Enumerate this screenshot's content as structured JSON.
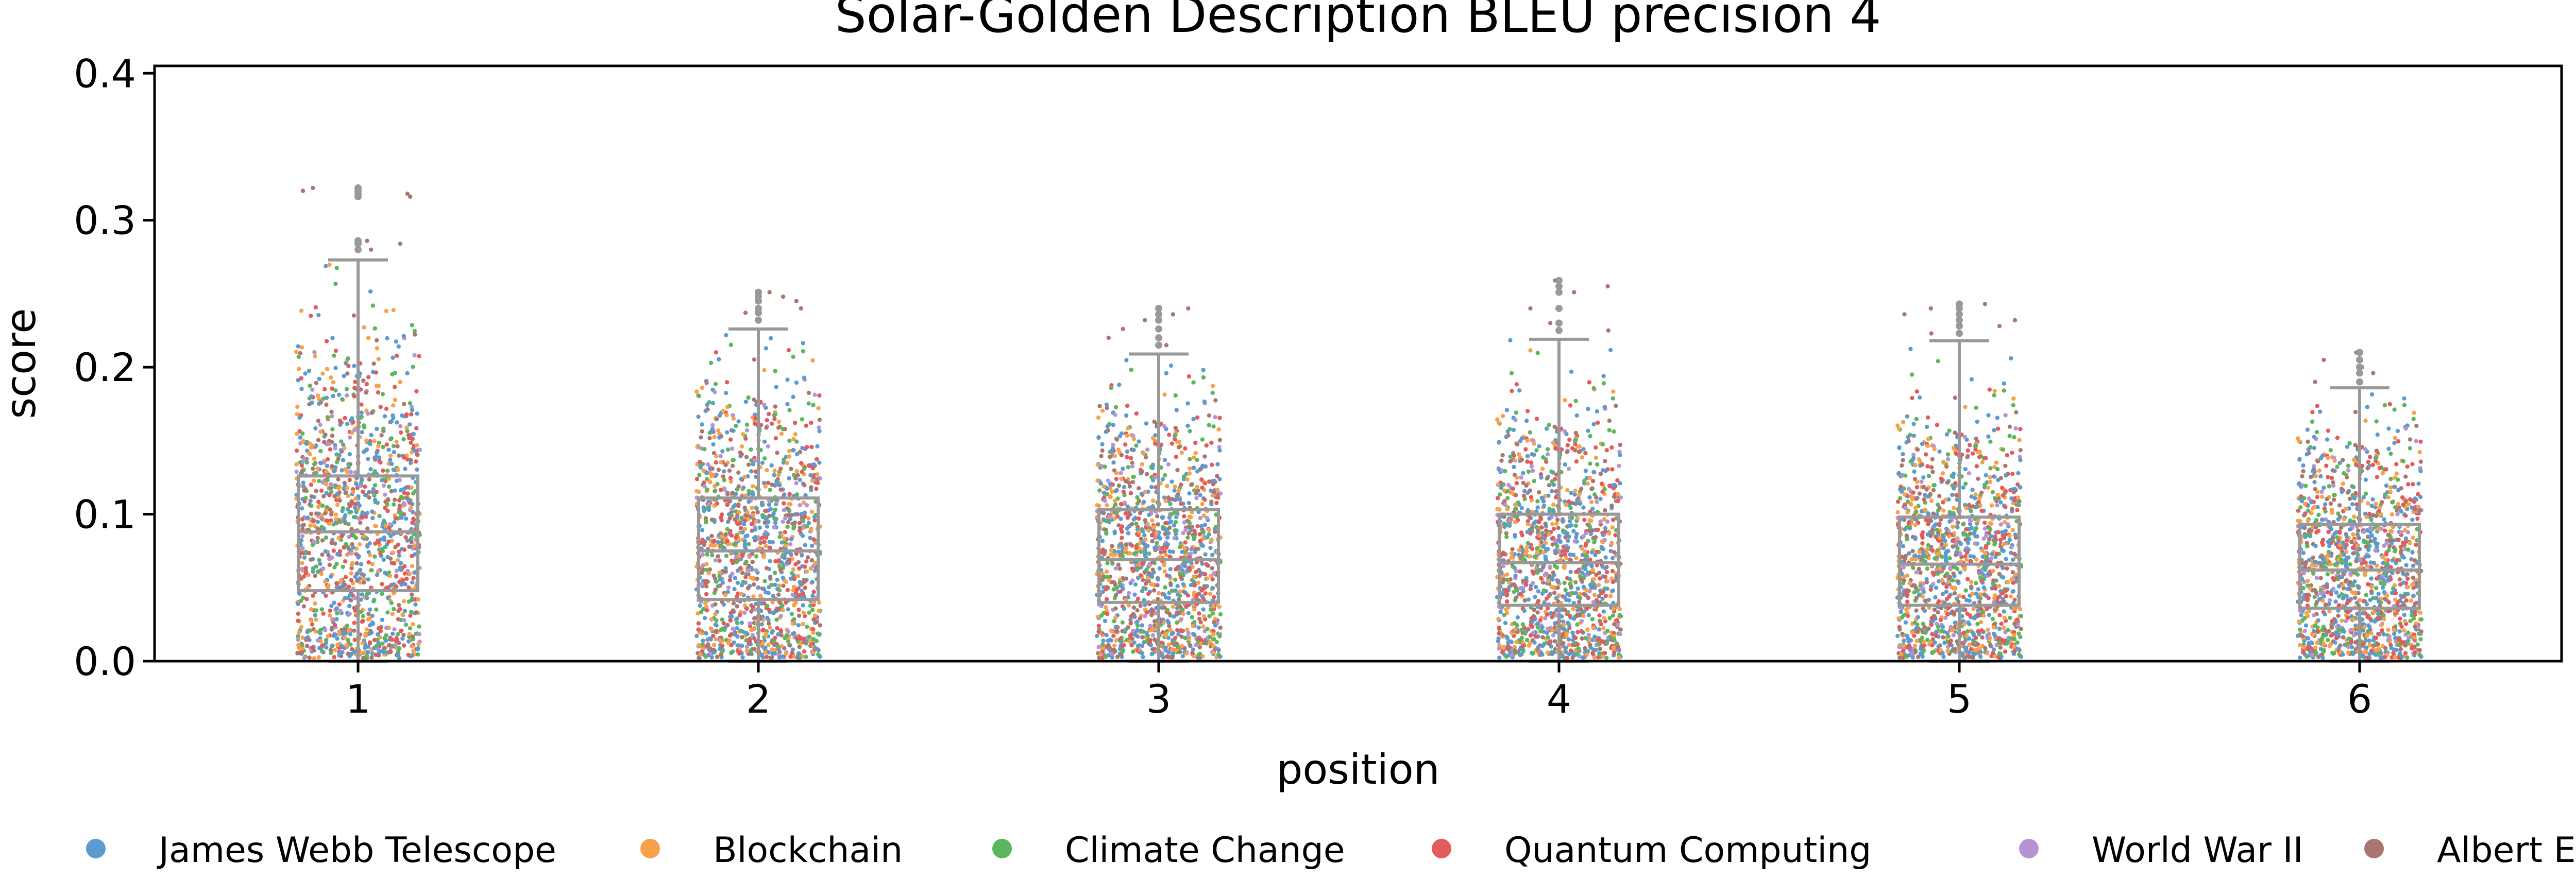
{
  "chart_data": {
    "type": "box",
    "title": "Solar-Golden Description BLEU precision 4",
    "xlabel": "position",
    "ylabel": "score",
    "categories": [
      "1",
      "2",
      "3",
      "4",
      "5",
      "6"
    ],
    "ylim": [
      0,
      0.405
    ],
    "y_ticks": [
      "0.0",
      "0.1",
      "0.2",
      "0.3",
      "0.4"
    ],
    "grid": false,
    "legend_position": "bottom",
    "series": [
      {
        "name": "James Webb Telescope",
        "color": "#5b9bd0"
      },
      {
        "name": "Blockchain",
        "color": "#f7a14c"
      },
      {
        "name": "Climate Change",
        "color": "#5cb65c"
      },
      {
        "name": "Quantum Computing",
        "color": "#e35b5b"
      },
      {
        "name": "World War II",
        "color": "#b594d4"
      },
      {
        "name": "Albert Einstein",
        "color": "#a9776f"
      }
    ],
    "boxes": [
      {
        "position": "1",
        "whisker_low": 0.0,
        "q1": 0.048,
        "median": 0.088,
        "q3": 0.126,
        "whisker_high": 0.273,
        "outliers": [
          0.28,
          0.284,
          0.286,
          0.316,
          0.318,
          0.32,
          0.322
        ]
      },
      {
        "position": "2",
        "whisker_low": 0.0,
        "q1": 0.042,
        "median": 0.075,
        "q3": 0.111,
        "whisker_high": 0.226,
        "outliers": [
          0.232,
          0.237,
          0.24,
          0.245,
          0.248,
          0.251
        ]
      },
      {
        "position": "3",
        "whisker_low": 0.0,
        "q1": 0.04,
        "median": 0.069,
        "q3": 0.103,
        "whisker_high": 0.209,
        "outliers": [
          0.215,
          0.22,
          0.226,
          0.232,
          0.236,
          0.24
        ]
      },
      {
        "position": "4",
        "whisker_low": 0.0,
        "q1": 0.038,
        "median": 0.067,
        "q3": 0.1,
        "whisker_high": 0.219,
        "outliers": [
          0.225,
          0.23,
          0.24,
          0.251,
          0.255,
          0.259
        ]
      },
      {
        "position": "5",
        "whisker_low": 0.0,
        "q1": 0.038,
        "median": 0.066,
        "q3": 0.098,
        "whisker_high": 0.218,
        "outliers": [
          0.223,
          0.228,
          0.232,
          0.236,
          0.24,
          0.243
        ]
      },
      {
        "position": "6",
        "whisker_low": 0.0,
        "q1": 0.036,
        "median": 0.062,
        "q3": 0.093,
        "whisker_high": 0.186,
        "outliers": [
          0.19,
          0.196,
          0.2,
          0.205,
          0.21
        ]
      }
    ]
  }
}
